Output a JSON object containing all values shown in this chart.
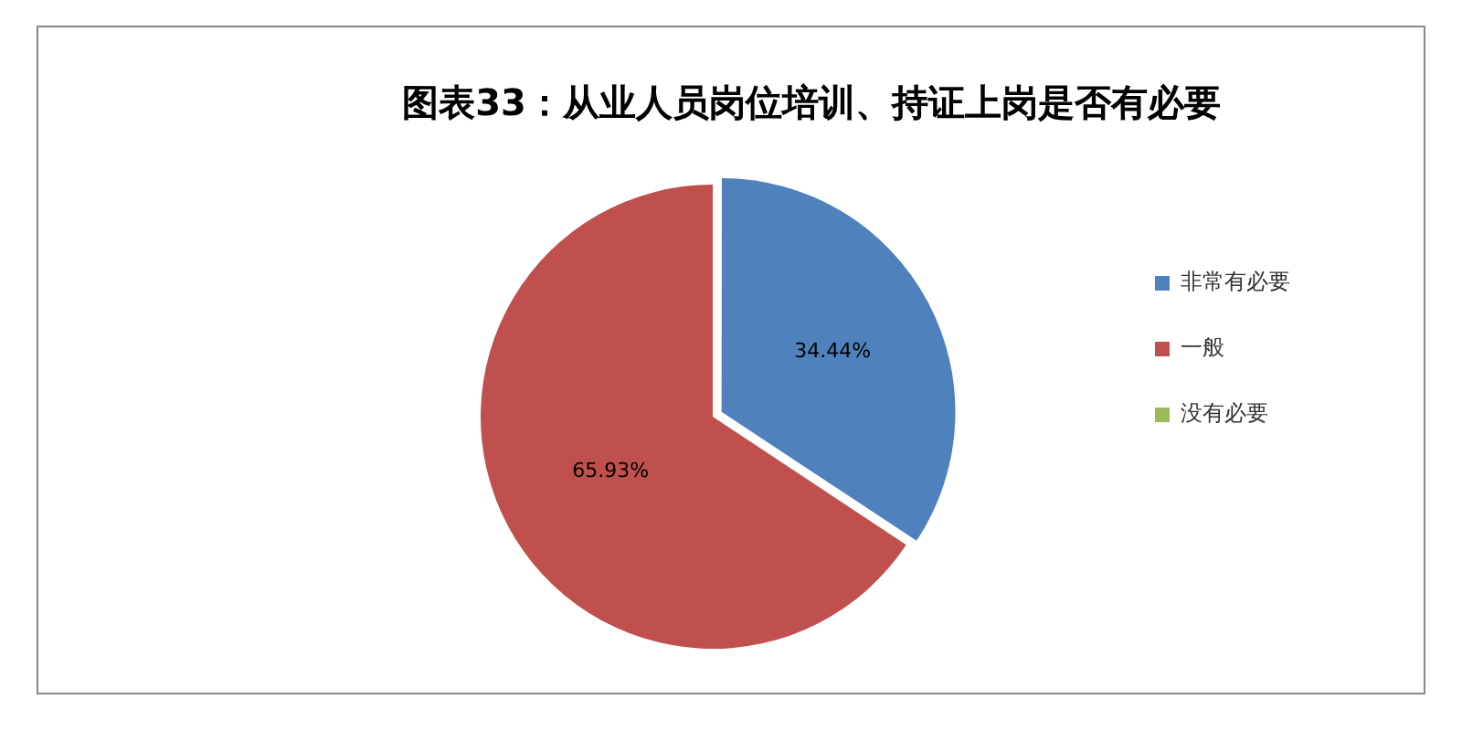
{
  "chart_data": {
    "type": "pie",
    "title": "图表33：从业人员岗位培训、持证上岗是否有必要",
    "categories": [
      "非常有必要",
      "一般",
      "没有必要"
    ],
    "values": [
      34.44,
      65.93,
      0
    ],
    "value_labels": [
      "34.44%",
      "65.93%",
      null
    ],
    "colors": [
      "#4f81bd",
      "#c0504d",
      "#9bbb59"
    ],
    "legend": "right"
  }
}
